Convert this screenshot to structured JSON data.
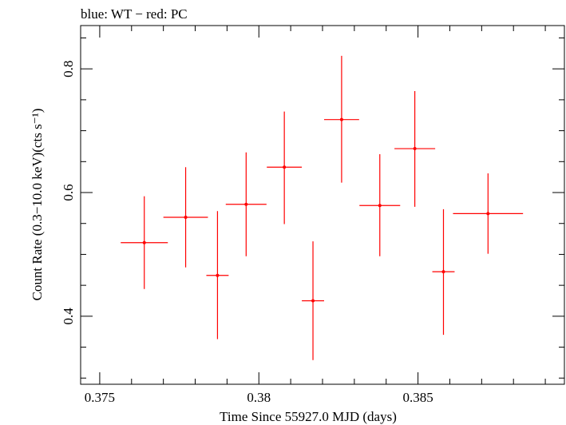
{
  "chart_data": {
    "type": "scatter",
    "title": "blue: WT − red: PC",
    "xlabel": "Time Since 55927.0 MJD (days)",
    "ylabel": "Count Rate (0.3−10.0 keV)(cts s⁻¹)",
    "xlim": [
      0.3744,
      0.3896
    ],
    "ylim": [
      0.29,
      0.87
    ],
    "xticks": [
      0.375,
      0.38,
      0.385
    ],
    "xtick_labels": [
      "0.375",
      "0.38",
      "0.385"
    ],
    "yticks": [
      0.4,
      0.6,
      0.8
    ],
    "ytick_labels": [
      "0.4",
      "0.6",
      "0.8"
    ],
    "grid": false,
    "series": [
      {
        "color": "#ff0000",
        "points": [
          {
            "x": 0.3764,
            "y": 0.519,
            "xerr": 0.00074,
            "ylo": 0.444,
            "yhi": 0.594
          },
          {
            "x": 0.3777,
            "y": 0.56,
            "xerr": 0.0007,
            "ylo": 0.479,
            "yhi": 0.641
          },
          {
            "x": 0.3787,
            "y": 0.466,
            "xerr": 0.00035,
            "ylo": 0.363,
            "yhi": 0.57
          },
          {
            "x": 0.3796,
            "y": 0.581,
            "xerr": 0.00064,
            "ylo": 0.497,
            "yhi": 0.665
          },
          {
            "x": 0.3808,
            "y": 0.641,
            "xerr": 0.00055,
            "ylo": 0.549,
            "yhi": 0.731
          },
          {
            "x": 0.3817,
            "y": 0.425,
            "xerr": 0.00035,
            "ylo": 0.329,
            "yhi": 0.521
          },
          {
            "x": 0.3826,
            "y": 0.718,
            "xerr": 0.00055,
            "ylo": 0.616,
            "yhi": 0.821
          },
          {
            "x": 0.3838,
            "y": 0.579,
            "xerr": 0.00064,
            "ylo": 0.497,
            "yhi": 0.662
          },
          {
            "x": 0.3849,
            "y": 0.671,
            "xerr": 0.00064,
            "ylo": 0.577,
            "yhi": 0.764
          },
          {
            "x": 0.3858,
            "y": 0.472,
            "xerr": 0.00035,
            "ylo": 0.37,
            "yhi": 0.573
          },
          {
            "x": 0.3872,
            "y": 0.566,
            "xerr": 0.0011,
            "ylo": 0.501,
            "yhi": 0.631
          }
        ]
      }
    ]
  }
}
